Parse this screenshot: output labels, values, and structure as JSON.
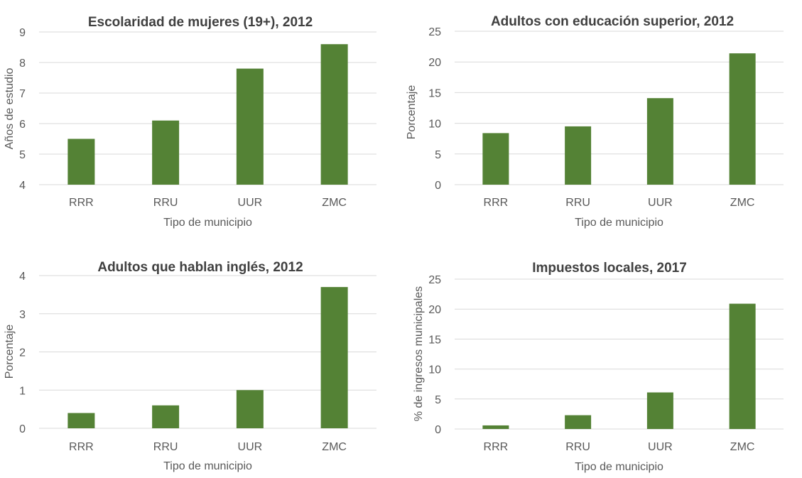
{
  "chart_data": [
    {
      "type": "bar",
      "title": "Escolaridad de mujeres (19+), 2012",
      "xlabel": "Tipo de municipio",
      "ylabel": "Años de estudio",
      "categories": [
        "RRR",
        "RRU",
        "UUR",
        "ZMC"
      ],
      "values": [
        5.5,
        6.1,
        7.8,
        8.6
      ],
      "ylim": [
        4,
        9
      ],
      "yticks": [
        4,
        5,
        6,
        7,
        8,
        9
      ],
      "grid": true,
      "color": "#548235"
    },
    {
      "type": "bar",
      "title": "Adultos con educación superior, 2012",
      "xlabel": "Tipo de municipio",
      "ylabel": "Porcentaje",
      "categories": [
        "RRR",
        "RRU",
        "UUR",
        "ZMC"
      ],
      "values": [
        8.4,
        9.5,
        14.1,
        21.4
      ],
      "ylim": [
        0,
        25
      ],
      "yticks": [
        0,
        5,
        10,
        15,
        20,
        25
      ],
      "grid": true,
      "color": "#548235"
    },
    {
      "type": "bar",
      "title": "Adultos que hablan inglés, 2012",
      "xlabel": "Tipo de municipio",
      "ylabel": "Porcentaje",
      "categories": [
        "RRR",
        "RRU",
        "UUR",
        "ZMC"
      ],
      "values": [
        0.4,
        0.6,
        1.0,
        3.7
      ],
      "ylim": [
        0,
        4
      ],
      "yticks": [
        0,
        1,
        2,
        3,
        4
      ],
      "grid": true,
      "color": "#548235"
    },
    {
      "type": "bar",
      "title": "Impuestos locales, 2017",
      "xlabel": "Tipo de municipio",
      "ylabel": "% de ingresos municipales",
      "categories": [
        "RRR",
        "RRU",
        "UUR",
        "ZMC"
      ],
      "values": [
        0.6,
        2.3,
        6.1,
        20.9
      ],
      "ylim": [
        0,
        25
      ],
      "yticks": [
        0,
        5,
        10,
        15,
        20,
        25
      ],
      "grid": true,
      "color": "#548235"
    }
  ]
}
